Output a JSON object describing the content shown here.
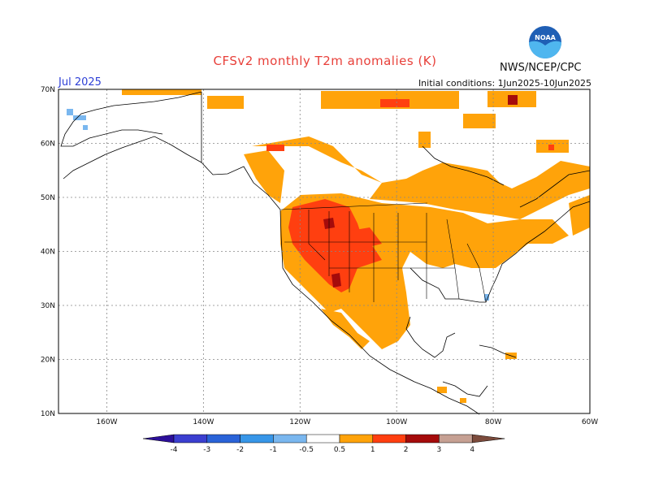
{
  "header": {
    "title": "CFSv2 monthly T2m anomalies (K)",
    "org": "NWS/NCEP/CPC",
    "month": "Jul 2025",
    "init": "Initial conditions: 1Jun2025-10Jun2025",
    "logo_text": "NOAA"
  },
  "map": {
    "lat_labels": [
      "70N",
      "60N",
      "50N",
      "40N",
      "30N",
      "20N",
      "10N"
    ],
    "lon_labels": [
      "160W",
      "140W",
      "120W",
      "100W",
      "80W",
      "60W"
    ],
    "lat_values": [
      70,
      60,
      50,
      40,
      30,
      20,
      10
    ],
    "lon_values": [
      -160,
      -140,
      -120,
      -100,
      -80,
      -60
    ],
    "extent": {
      "lon_min": -170,
      "lon_max": -60,
      "lat_min": 10,
      "lat_max": 70
    }
  },
  "legend": {
    "labels": [
      "-4",
      "-3",
      "-2",
      "-1",
      "-0.5",
      "0.5",
      "1",
      "2",
      "3",
      "4"
    ],
    "colors": [
      "#2c0f9a",
      "#3b3fd0",
      "#2a63d8",
      "#3796e8",
      "#7ab7ef",
      "#ffffff",
      "#ffa30a",
      "#ff3f10",
      "#a50b0b",
      "#c6a093",
      "#7c4b3c"
    ]
  },
  "anomaly_colors": {
    "warm_05_1": "#ffa30a",
    "warm_1_2": "#ff3f10",
    "warm_2_3": "#a50b0b",
    "cool_05_1": "#7ab7ef"
  }
}
